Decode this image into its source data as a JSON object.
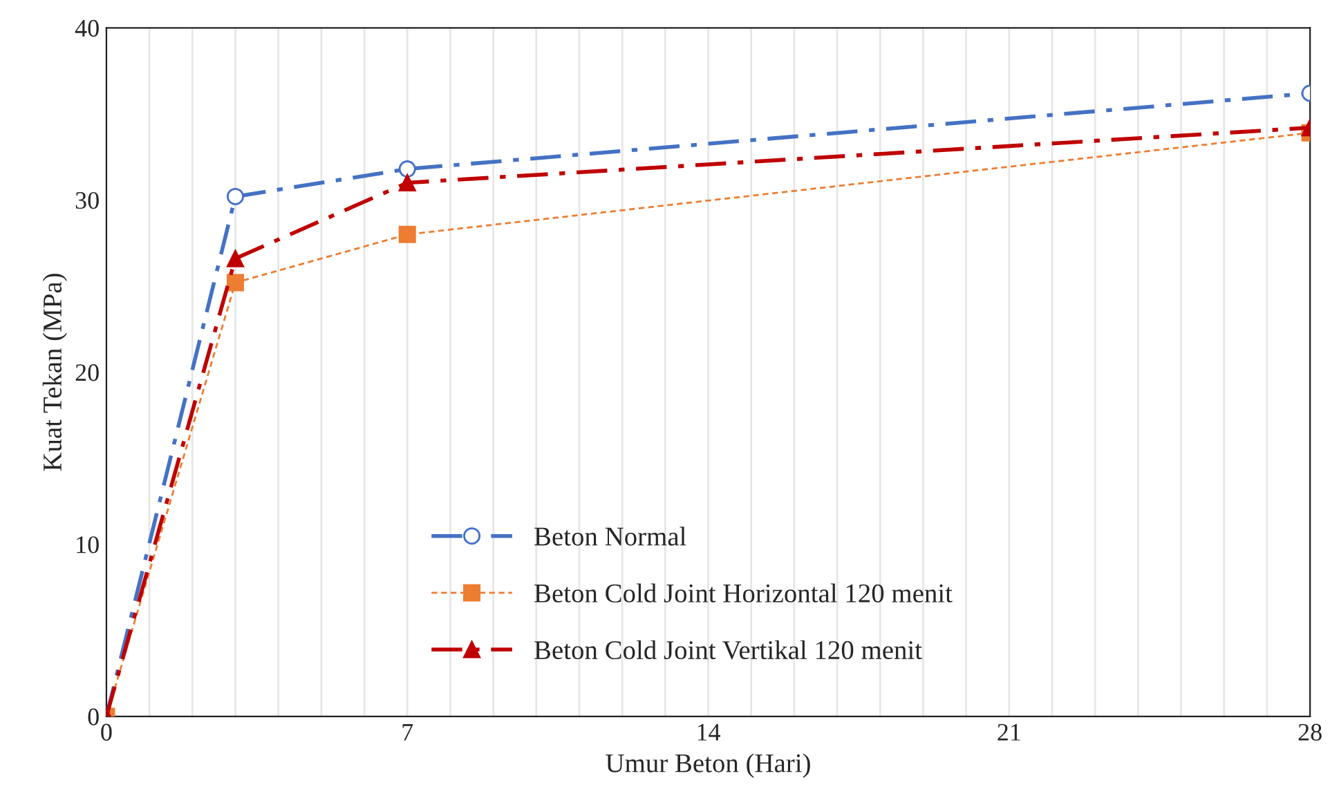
{
  "chart_data": {
    "type": "line",
    "xlabel": "Umur Beton (Hari)",
    "ylabel": "Kuat Tekan (MPa)",
    "x": [
      0,
      3,
      7,
      28
    ],
    "series": [
      {
        "name": "Beton Normal",
        "color": "#4472c4",
        "values": [
          0,
          30.2,
          31.8,
          36.2
        ],
        "marker": "circle",
        "line_style": "dashdot"
      },
      {
        "name": "Beton Cold Joint Horizontal 120 menit",
        "color": "#ed7d31",
        "values": [
          0,
          25.2,
          28.0,
          33.9
        ],
        "marker": "square",
        "line_style": "dashed"
      },
      {
        "name": "Beton Cold Joint Vertikal 120 menit",
        "color": "#c00000",
        "values": [
          0,
          26.6,
          31.0,
          34.2
        ],
        "marker": "triangle",
        "line_style": "dashdot"
      }
    ],
    "xlim": [
      0,
      28
    ],
    "ylim": [
      0,
      40
    ],
    "xticks": [
      0,
      {
        "value": 1,
        "label": null
      },
      {
        "value": 2,
        "label": null
      },
      {
        "value": 3,
        "label": null
      },
      {
        "value": 4,
        "label": null
      },
      {
        "value": 5,
        "label": null
      },
      {
        "value": 6,
        "label": null
      },
      7,
      {
        "value": 8,
        "label": null
      },
      {
        "value": 9,
        "label": null
      },
      {
        "value": 10,
        "label": null
      },
      {
        "value": 11,
        "label": null
      },
      {
        "value": 12,
        "label": null
      },
      {
        "value": 13,
        "label": null
      },
      14,
      {
        "value": 15,
        "label": null
      },
      {
        "value": 16,
        "label": null
      },
      {
        "value": 17,
        "label": null
      },
      {
        "value": 18,
        "label": null
      },
      {
        "value": 19,
        "label": null
      },
      {
        "value": 20,
        "label": null
      },
      21,
      {
        "value": 22,
        "label": null
      },
      {
        "value": 23,
        "label": null
      },
      {
        "value": 24,
        "label": null
      },
      {
        "value": 25,
        "label": null
      },
      {
        "value": 26,
        "label": null
      },
      {
        "value": 27,
        "label": null
      },
      28
    ],
    "yticks": [
      0,
      10,
      20,
      30,
      40
    ],
    "grid": "x",
    "legend": "bottom"
  }
}
